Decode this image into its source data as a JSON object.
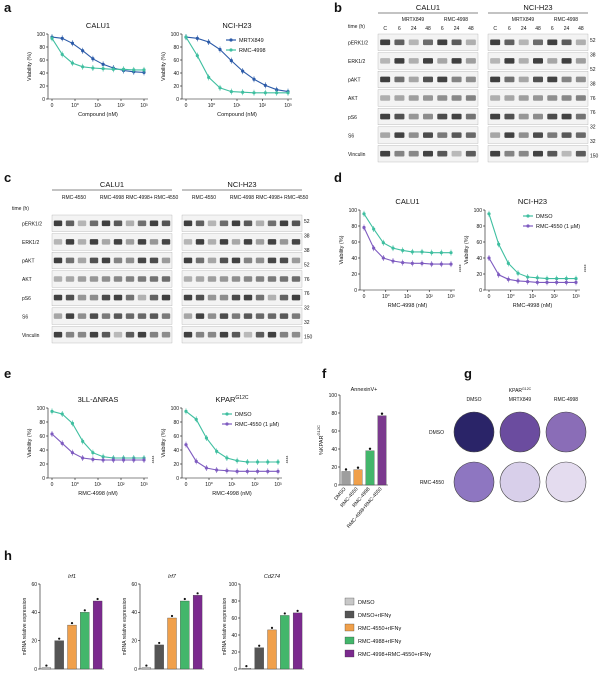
{
  "panels": {
    "a": {
      "letter": "a",
      "charts": [
        {
          "title": "CALU1",
          "ylabel": "Viability (%)",
          "xlabel": "Compound (nM)",
          "yticks": [
            "0",
            "20",
            "40",
            "60",
            "80",
            "100"
          ],
          "xticks": [
            "0",
            "10⁰",
            "10¹",
            "10²",
            "10³"
          ],
          "series": [
            {
              "name": "MRTX849",
              "color": "#2b5aa8",
              "y": [
                100,
                98,
                90,
                78,
                65,
                56,
                50,
                46,
                44,
                43
              ]
            },
            {
              "name": "RMC-4998",
              "color": "#3fbfa0",
              "y": [
                98,
                72,
                58,
                52,
                50,
                49,
                48,
                48,
                47,
                47
              ]
            }
          ]
        },
        {
          "title": "NCI-H23",
          "ylabel": "Viability (%)",
          "xlabel": "Compound (nM)",
          "yticks": [
            "0",
            "20",
            "40",
            "60",
            "80",
            "100"
          ],
          "xticks": [
            "0",
            "10⁰",
            "10¹",
            "10²",
            "10³"
          ],
          "legend": [
            "MRTX849",
            "RMC-4998"
          ],
          "series": [
            {
              "name": "MRTX849",
              "color": "#2b5aa8",
              "y": [
                100,
                98,
                92,
                80,
                62,
                45,
                32,
                22,
                15,
                12
              ]
            },
            {
              "name": "RMC-4998",
              "color": "#3fbfa0",
              "y": [
                100,
                70,
                35,
                18,
                12,
                11,
                10,
                10,
                10,
                10
              ]
            }
          ]
        }
      ]
    },
    "b": {
      "letter": "b",
      "groups": [
        "CALU1",
        "NCI-H23"
      ],
      "subgroups": [
        "MRTX849",
        "RMC-4998",
        "MRTX849",
        "RMC-4998"
      ],
      "time_label": "time (h)",
      "times": [
        "C",
        "6",
        "24",
        "48",
        "6",
        "24",
        "48",
        "C",
        "6",
        "24",
        "48",
        "6",
        "24",
        "48"
      ],
      "rows": [
        "pERK1/2",
        "ERK1/2",
        "pAKT",
        "AKT",
        "pS6",
        "S6",
        "Vinculin"
      ],
      "mw": [
        "52",
        "38",
        "52",
        "38",
        "76",
        "76",
        "32",
        "32",
        "150"
      ]
    },
    "c": {
      "letter": "c",
      "groups": [
        "CALU1",
        "NCI-H23"
      ],
      "subgroups": [
        "RMC-4550",
        "RMC-4998",
        "RMC-4998+ RMC-4550",
        "RMC-4550",
        "RMC-4998",
        "RMC-4998+ RMC-4550"
      ],
      "time_label": "time (h)",
      "rows": [
        "pERK1/2",
        "ERK1/2",
        "pAKT",
        "AKT",
        "pS6",
        "S6",
        "Vinculin"
      ],
      "mw": [
        "52",
        "38",
        "38",
        "52",
        "76",
        "76",
        "32",
        "32",
        "150"
      ]
    },
    "d": {
      "letter": "d",
      "charts": [
        {
          "title": "CALU1",
          "ylabel": "Viability (%)",
          "xlabel": "RMC-4998 (nM)",
          "sig": "****",
          "yticks": [
            "0",
            "20",
            "40",
            "60",
            "80",
            "100"
          ],
          "xticks": [
            "0",
            "10⁰",
            "10¹",
            "10²",
            "10³"
          ],
          "series": [
            {
              "name": "DMSO",
              "color": "#3fbfa0",
              "y": [
                100,
                80,
                62,
                55,
                52,
                50,
                50,
                49,
                49,
                49
              ]
            },
            {
              "name": "RMC-4550 (1 µM)",
              "color": "#7e5bc0",
              "y": [
                82,
                55,
                42,
                38,
                36,
                35,
                35,
                34,
                34,
                34
              ]
            }
          ]
        },
        {
          "title": "NCI-H23",
          "ylabel": "Viability (%)",
          "xlabel": "RMC-4998 (nM)",
          "sig": "****",
          "yticks": [
            "0",
            "20",
            "40",
            "60",
            "80",
            "100"
          ],
          "xticks": [
            "0",
            "10⁰",
            "10¹",
            "10²",
            "10³"
          ],
          "legend": [
            "DMSO",
            "RMC-4550 (1 µM)"
          ],
          "series": [
            {
              "name": "DMSO",
              "color": "#3fbfa0",
              "y": [
                100,
                60,
                35,
                22,
                17,
                16,
                15,
                15,
                15,
                15
              ]
            },
            {
              "name": "RMC-4550 (1 µM)",
              "color": "#7e5bc0",
              "y": [
                42,
                20,
                14,
                12,
                11,
                10,
                10,
                10,
                10,
                10
              ]
            }
          ]
        }
      ]
    },
    "e": {
      "letter": "e",
      "charts": [
        {
          "title": "3LL-ΔNRAS",
          "ylabel": "Viability (%)",
          "xlabel": "RMC-4998 (nM)",
          "sig": "****",
          "yticks": [
            "0",
            "20",
            "40",
            "60",
            "80",
            "100"
          ],
          "xticks": [
            "0",
            "10⁰",
            "10¹",
            "10²",
            "10³"
          ],
          "series": [
            {
              "name": "DMSO",
              "color": "#3fbfa0",
              "y": [
                100,
                96,
                82,
                55,
                38,
                32,
                30,
                30,
                30,
                30
              ]
            },
            {
              "name": "RMC-4550 (1 µM)",
              "color": "#7e5bc0",
              "y": [
                66,
                52,
                38,
                30,
                28,
                27,
                27,
                27,
                27,
                27
              ]
            }
          ]
        },
        {
          "title": "KPAR",
          "title_sup": "G12C",
          "ylabel": "Viability (%)",
          "xlabel": "RMC-4998 (nM)",
          "sig": "****",
          "yticks": [
            "0",
            "20",
            "40",
            "60",
            "80",
            "100"
          ],
          "xticks": [
            "0",
            "10⁰",
            "10¹",
            "10²",
            "10³"
          ],
          "legend": [
            "DMSO",
            "RMC-4550 (1 µM)"
          ],
          "series": [
            {
              "name": "DMSO",
              "color": "#3fbfa0",
              "y": [
                100,
                88,
                60,
                40,
                30,
                26,
                24,
                24,
                24,
                24
              ]
            },
            {
              "name": "RMC-4550 (1 µM)",
              "color": "#7e5bc0",
              "y": [
                50,
                25,
                15,
                12,
                11,
                10,
                10,
                10,
                10,
                10
              ]
            }
          ]
        }
      ]
    },
    "f": {
      "letter": "f",
      "title": "AnnexinV+",
      "ylabel": "%KPAR",
      "ylabel_sup": "G12C",
      "yticks": [
        "0",
        "20",
        "40",
        "60",
        "80",
        "100"
      ],
      "categories": [
        "DMSO",
        "RMC-4550",
        "RMC-4998",
        "RMC-4998+RMC-4550"
      ],
      "values": [
        15,
        17,
        38,
        77
      ],
      "colors": [
        "#9e9e9e",
        "#f0a04b",
        "#43b66b",
        "#7b3a8e"
      ]
    },
    "g": {
      "letter": "g",
      "title": "KPAR",
      "title_sup": "G12C",
      "cols": [
        "DMSO",
        "MRTX849",
        "RMC-4998"
      ],
      "rows": [
        "DMSO",
        "RMC-4550"
      ]
    },
    "h": {
      "letter": "h",
      "charts": [
        {
          "gene": "Irf1",
          "ylabel": "mRNA relative expression",
          "yticks": [
            "0",
            "20",
            "40",
            "60"
          ],
          "values": [
            1,
            20,
            31,
            40,
            48
          ]
        },
        {
          "gene": "Irf7",
          "ylabel": "mRNA relative expression",
          "yticks": [
            "0",
            "20",
            "40",
            "60"
          ],
          "values": [
            1,
            17,
            36,
            48,
            52
          ]
        },
        {
          "gene": "Cd274",
          "ylabel": "mRNA relative expression",
          "yticks": [
            "0",
            "20",
            "40",
            "60",
            "80",
            "100"
          ],
          "values": [
            1,
            25,
            46,
            63,
            66
          ]
        }
      ],
      "legend": [
        "DMSO",
        "DMSO+rIFNγ",
        "RMC-4550+rIFNγ",
        "RMC-4988+rIFNγ",
        "RMC-4998+RMC-4550+rIFNγ"
      ],
      "colors": [
        "#c8c8c8",
        "#555555",
        "#f0a04b",
        "#43b66b",
        "#7b2a8e"
      ]
    }
  },
  "chart_data": [
    {
      "type": "line",
      "title": "CALU1",
      "xlabel": "Compound (nM)",
      "ylabel": "Viability (%)",
      "series": [
        {
          "name": "MRTX849",
          "values": [
            100,
            98,
            90,
            78,
            65,
            56,
            50,
            46,
            44,
            43
          ]
        },
        {
          "name": "RMC-4998",
          "values": [
            98,
            72,
            58,
            52,
            50,
            49,
            48,
            48,
            47,
            47
          ]
        }
      ]
    },
    {
      "type": "line",
      "title": "NCI-H23",
      "xlabel": "Compound (nM)",
      "ylabel": "Viability (%)",
      "series": [
        {
          "name": "MRTX849",
          "values": [
            100,
            98,
            92,
            80,
            62,
            45,
            32,
            22,
            15,
            12
          ]
        },
        {
          "name": "RMC-4998",
          "values": [
            100,
            70,
            35,
            18,
            12,
            11,
            10,
            10,
            10,
            10
          ]
        }
      ]
    },
    {
      "type": "bar",
      "title": "AnnexinV+",
      "categories": [
        "DMSO",
        "RMC-4550",
        "RMC-4998",
        "RMC-4998+RMC-4550"
      ],
      "values": [
        15,
        17,
        38,
        77
      ]
    }
  ]
}
